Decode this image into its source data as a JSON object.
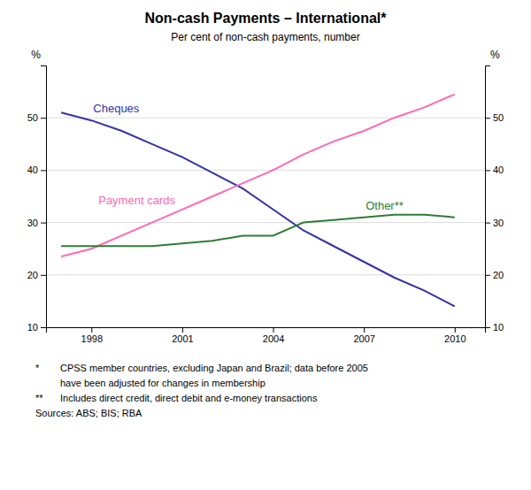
{
  "chart_data": {
    "type": "line",
    "title": "Non-cash Payments – International*",
    "subtitle": "Per cent of non-cash payments, number",
    "ylabel": "%",
    "y2label": "%",
    "x": [
      1997,
      1998,
      1999,
      2000,
      2001,
      2002,
      2003,
      2004,
      2005,
      2006,
      2007,
      2008,
      2009,
      2010
    ],
    "series": [
      {
        "name": "Cheques",
        "color": "#3333AA",
        "values": [
          51.0,
          49.5,
          47.5,
          45.0,
          42.5,
          39.5,
          36.5,
          32.5,
          28.5,
          25.5,
          22.5,
          19.5,
          17.0,
          14.0
        ]
      },
      {
        "name": "Payment cards",
        "color": "#FF69B4",
        "values": [
          23.5,
          25.0,
          27.5,
          30.0,
          32.5,
          35.0,
          37.5,
          40.0,
          43.0,
          45.5,
          47.5,
          50.0,
          52.0,
          54.5
        ]
      },
      {
        "name": "Other**",
        "color": "#2E7D32",
        "values": [
          25.5,
          25.5,
          25.5,
          25.5,
          26.0,
          26.5,
          27.5,
          27.5,
          30.0,
          30.5,
          31.0,
          31.5,
          31.5,
          31.0
        ]
      }
    ],
    "xlim": [
      1996.5,
      2011.0
    ],
    "xticks": [
      1998,
      2001,
      2004,
      2007,
      2010
    ],
    "ylim": [
      10,
      60
    ],
    "yticks": [
      10,
      20,
      30,
      40,
      50
    ],
    "y2lim": [
      10,
      60
    ],
    "y2ticks": [
      10,
      20,
      30,
      40,
      50
    ],
    "grid": true,
    "annotations": [
      [
        "*",
        "CPSS member countries, excluding Japan and Brazil; data before 2005",
        "have been adjusted for changes in membership"
      ],
      [
        "**",
        "Includes direct credit, direct debit and e-money transactions"
      ],
      [
        "Sources: ABS; BIS; RBA"
      ]
    ]
  }
}
